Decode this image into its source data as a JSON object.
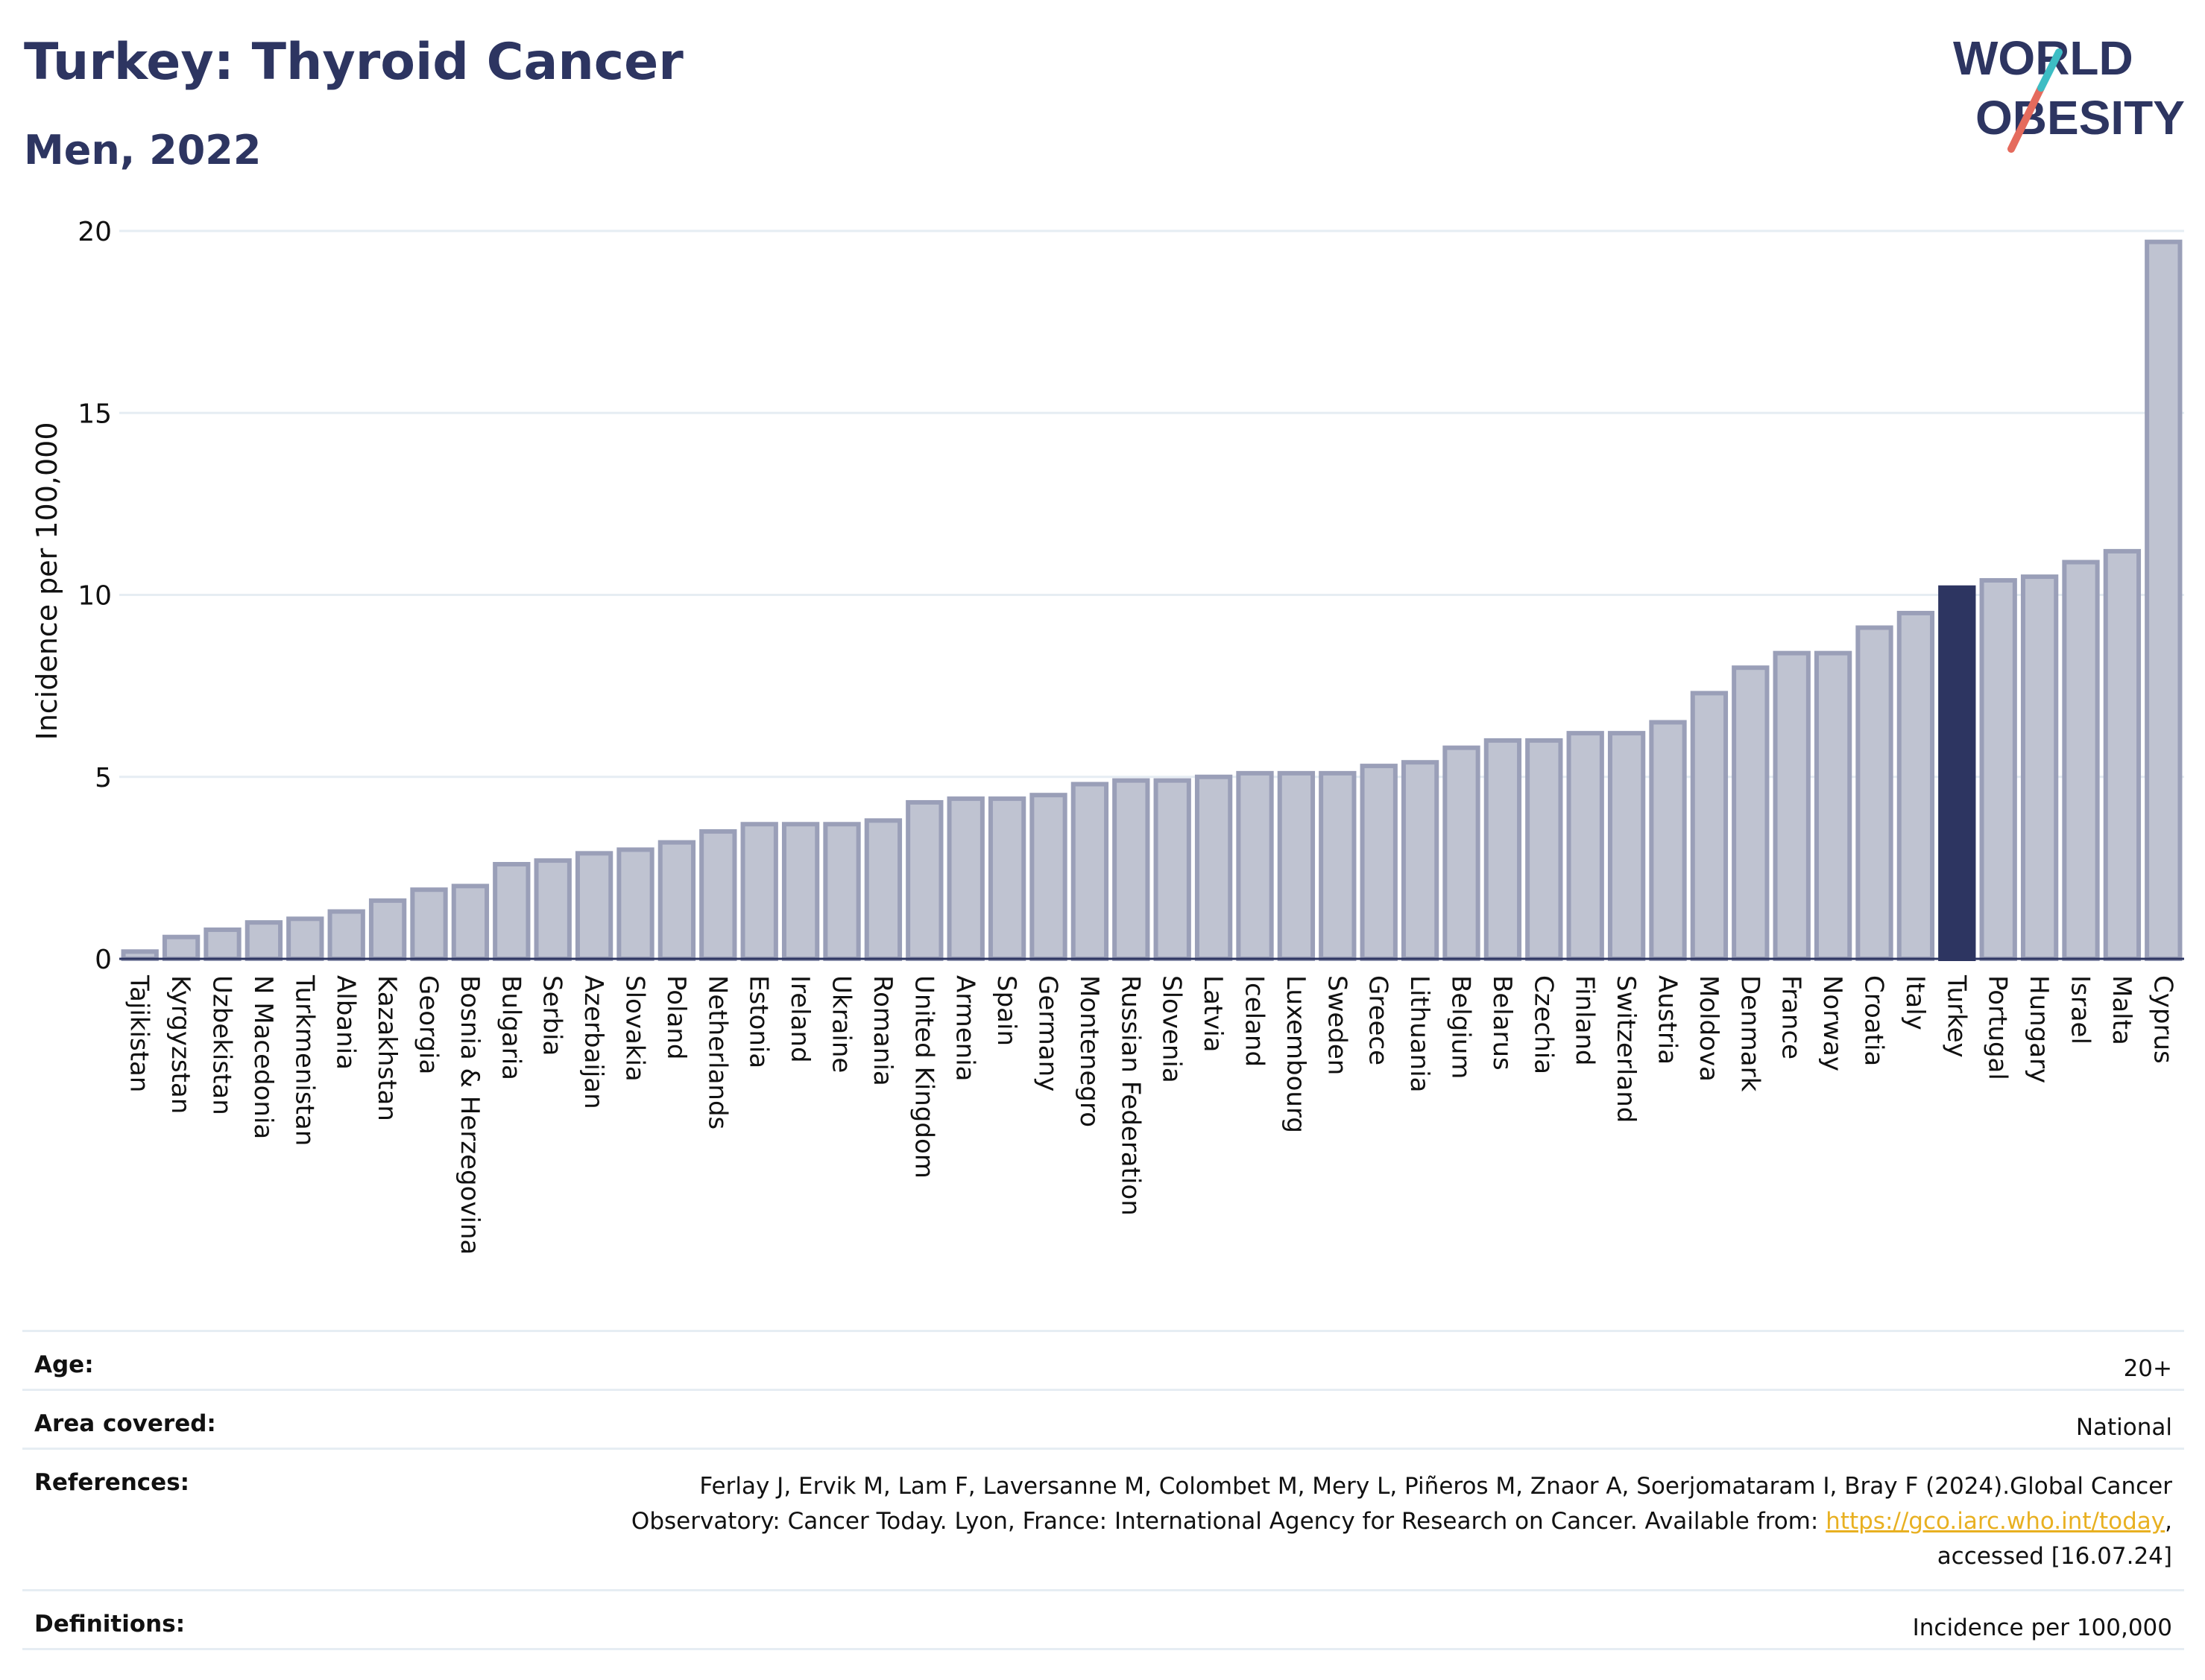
{
  "header": {
    "title": "Turkey: Thyroid Cancer",
    "subtitle": "Men, 2022",
    "logo_line1": "WORLD",
    "logo_line2": "OBESITY"
  },
  "chart_data": {
    "type": "bar",
    "title": "Turkey: Thyroid Cancer",
    "subtitle": "Men, 2022",
    "ylabel": "Incidence per 100,000",
    "xlabel": "",
    "ylim": [
      0,
      20
    ],
    "yticks": [
      0,
      5,
      10,
      15,
      20
    ],
    "grid": true,
    "highlight": "Turkey",
    "colors": {
      "bar": "#bfc3d1",
      "bar_stroke": "#9a9fb8",
      "highlight": "#2d3561",
      "grid": "#e6edf3"
    },
    "categories": [
      "Tajikistan",
      "Kyrgyzstan",
      "Uzbekistan",
      "N Macedonia",
      "Turkmenistan",
      "Albania",
      "Kazakhstan",
      "Georgia",
      "Bosnia & Herzegovina",
      "Bulgaria",
      "Serbia",
      "Azerbaijan",
      "Slovakia",
      "Poland",
      "Netherlands",
      "Estonia",
      "Ireland",
      "Ukraine",
      "Romania",
      "United Kingdom",
      "Armenia",
      "Spain",
      "Germany",
      "Montenegro",
      "Russian Federation",
      "Slovenia",
      "Latvia",
      "Iceland",
      "Luxembourg",
      "Sweden",
      "Greece",
      "Lithuania",
      "Belgium",
      "Belarus",
      "Czechia",
      "Finland",
      "Switzerland",
      "Austria",
      "Moldova",
      "Denmark",
      "France",
      "Norway",
      "Croatia",
      "Italy",
      "Turkey",
      "Portugal",
      "Hungary",
      "Israel",
      "Malta",
      "Cyprus"
    ],
    "values": [
      0.2,
      0.6,
      0.8,
      1.0,
      1.1,
      1.3,
      1.6,
      1.9,
      2.0,
      2.6,
      2.7,
      2.9,
      3.0,
      3.2,
      3.5,
      3.7,
      3.7,
      3.7,
      3.8,
      4.3,
      4.4,
      4.4,
      4.5,
      4.8,
      4.9,
      4.9,
      5.0,
      5.1,
      5.1,
      5.1,
      5.3,
      5.4,
      5.8,
      6.0,
      6.0,
      6.2,
      6.2,
      6.5,
      7.3,
      8.0,
      8.4,
      8.4,
      9.1,
      9.5,
      10.2,
      10.4,
      10.5,
      10.9,
      11.2,
      19.7
    ]
  },
  "info": {
    "age_label": "Age:",
    "age_value": "20+",
    "area_label": "Area covered:",
    "area_value": "National",
    "ref_label": "References:",
    "ref_text1": "Ferlay J, Ervik M, Lam F, Laversanne M, Colombet M, Mery L, Piñeros M, Znaor A, Soerjomataram I, Bray F (2024).Global Cancer",
    "ref_text2": "Observatory: Cancer Today. Lyon, France: International Agency for Research on Cancer. Available from: ",
    "ref_link": "https://gco.iarc.who.int/today",
    "ref_text3": ",",
    "ref_text4": "accessed [16.07.24]",
    "def_label": "Definitions:",
    "def_value": "Incidence per 100,000"
  }
}
